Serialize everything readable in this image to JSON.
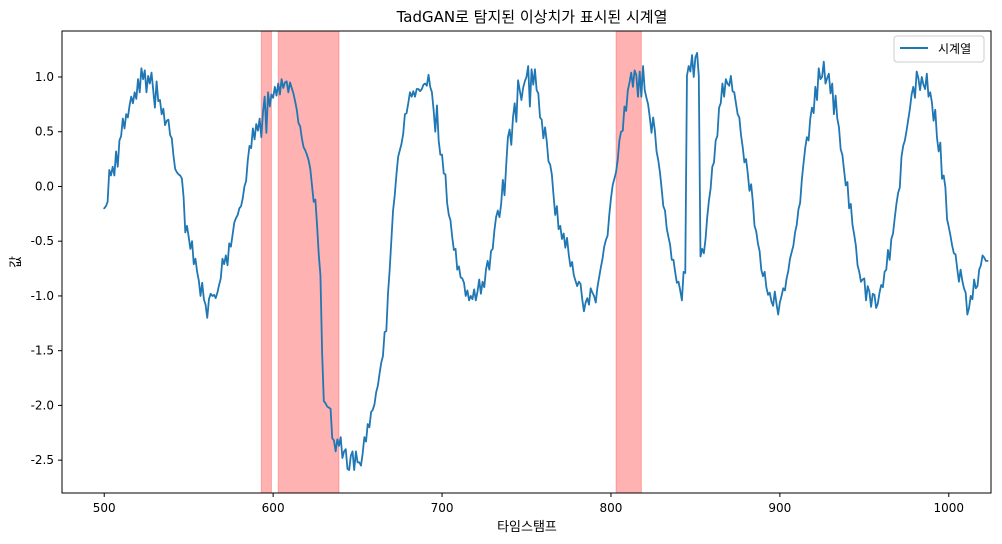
{
  "chart_data": {
    "type": "line",
    "title": "TadGAN로 탐지된 이상치가 표시된 시계열",
    "xlabel": "타임스탬프",
    "ylabel": "값",
    "xlim": [
      475,
      1025
    ],
    "ylim": [
      -2.8,
      1.42
    ],
    "xticks": [
      500,
      600,
      700,
      800,
      900,
      1000
    ],
    "yticks": [
      1.0,
      0.5,
      0.0,
      -0.5,
      -1.0,
      -1.5,
      -2.0,
      -2.5
    ],
    "legend": {
      "position": "top-right",
      "entries": [
        "시계열"
      ]
    },
    "series": [
      {
        "name": "시계열",
        "color": "#1f77b4",
        "x_start": 500,
        "x_step": 1,
        "values": [
          -0.2,
          -0.18,
          -0.14,
          0.15,
          0.1,
          0.18,
          0.1,
          0.32,
          0.18,
          0.42,
          0.46,
          0.62,
          0.53,
          0.66,
          0.63,
          0.74,
          0.82,
          0.76,
          0.86,
          0.8,
          0.98,
          0.86,
          1.08,
          0.98,
          1.06,
          0.86,
          1.01,
          0.94,
          1.04,
          0.88,
          0.72,
          0.96,
          0.78,
          0.79,
          0.66,
          0.71,
          0.56,
          0.6,
          0.61,
          0.47,
          0.44,
          0.28,
          0.16,
          0.13,
          0.11,
          0.1,
          0.07,
          -0.1,
          -0.42,
          -0.36,
          -0.46,
          -0.57,
          -0.5,
          -0.71,
          -0.66,
          -0.78,
          -0.86,
          -1.0,
          -0.88,
          -1.03,
          -1.08,
          -1.2,
          -1.03,
          -0.98,
          -1.0,
          -0.99,
          -1.02,
          -0.97,
          -0.9,
          -0.84,
          -0.66,
          -0.71,
          -0.63,
          -0.72,
          -0.52,
          -0.55,
          -0.44,
          -0.33,
          -0.29,
          -0.26,
          -0.2,
          -0.18,
          -0.11,
          0.0,
          0.05,
          0.24,
          0.37,
          0.35,
          0.53,
          0.43,
          0.57,
          0.51,
          0.62,
          0.45,
          0.68,
          0.82,
          0.49,
          0.86,
          0.73,
          0.84,
          0.81,
          0.91,
          0.83,
          0.94,
          0.84,
          0.98,
          0.9,
          0.95,
          0.96,
          0.86,
          0.95,
          0.9,
          0.85,
          0.78,
          0.7,
          0.58,
          0.55,
          0.44,
          0.36,
          0.33,
          0.29,
          0.24,
          0.16,
          0.01,
          -0.14,
          -0.12,
          -0.35,
          -0.62,
          -0.81,
          -1.52,
          -1.96,
          -1.98,
          -2.01,
          -2.02,
          -2.03,
          -2.3,
          -2.32,
          -2.42,
          -2.31,
          -2.37,
          -2.29,
          -2.48,
          -2.42,
          -2.4,
          -2.58,
          -2.59,
          -2.46,
          -2.42,
          -2.59,
          -2.42,
          -2.52,
          -2.52,
          -2.55,
          -2.44,
          -2.29,
          -2.33,
          -2.17,
          -2.2,
          -2.06,
          -2.04,
          -1.99,
          -1.88,
          -1.82,
          -1.71,
          -1.61,
          -1.55,
          -1.33,
          -1.32,
          -0.98,
          -0.76,
          -0.49,
          -0.22,
          -0.08,
          0.11,
          0.27,
          0.33,
          0.39,
          0.48,
          0.66,
          0.67,
          0.76,
          0.86,
          0.82,
          0.87,
          0.82,
          0.89,
          0.89,
          0.87,
          0.89,
          0.93,
          0.94,
          0.92,
          1.02,
          0.91,
          0.86,
          0.7,
          0.5,
          0.74,
          0.42,
          0.29,
          0.29,
          0.12,
          0.11,
          -0.15,
          -0.26,
          -0.31,
          -0.46,
          -0.58,
          -0.57,
          -0.76,
          -0.73,
          -0.83,
          -0.84,
          -0.88,
          -1.0,
          -0.95,
          -1.04,
          -1.0,
          -1.03,
          -0.94,
          -1.04,
          -0.96,
          -0.85,
          -0.98,
          -0.87,
          -0.92,
          -0.76,
          -0.68,
          -0.76,
          -0.59,
          -0.57,
          -0.4,
          -0.28,
          -0.22,
          -0.28,
          -0.16,
          0.06,
          -0.08,
          0.2,
          0.45,
          0.52,
          0.38,
          0.63,
          0.76,
          0.59,
          0.97,
          0.88,
          0.79,
          0.9,
          0.96,
          1.0,
          1.1,
          0.73,
          1.07,
          0.93,
          1.07,
          0.88,
          0.85,
          0.63,
          0.61,
          0.44,
          0.54,
          0.41,
          0.23,
          0.2,
          0.11,
          -0.08,
          -0.26,
          -0.18,
          -0.39,
          -0.36,
          -0.48,
          -0.43,
          -0.56,
          -0.47,
          -0.62,
          -0.73,
          -0.69,
          -0.81,
          -0.86,
          -0.91,
          -0.87,
          -0.89,
          -1.03,
          -1.14,
          -1.06,
          -1.02,
          -1.08,
          -0.93,
          -0.97,
          -1.0,
          -1.06,
          -0.92,
          -0.83,
          -0.74,
          -0.66,
          -0.55,
          -0.49,
          -0.45,
          -0.26,
          -0.11,
          0.01,
          0.07,
          0.13,
          0.24,
          0.42,
          0.5,
          0.51,
          0.73,
          0.69,
          0.88,
          0.95,
          1.04,
          0.91,
          1.06,
          1.02,
          0.82,
          1.05,
          0.82,
          1.1,
          0.88,
          0.81,
          0.75,
          0.63,
          0.49,
          0.63,
          0.51,
          0.32,
          0.24,
          0.13,
          -0.02,
          -0.18,
          -0.22,
          -0.38,
          -0.46,
          -0.53,
          -0.67,
          -0.67,
          -0.78,
          -0.88,
          -0.87,
          -0.95,
          -1.04,
          -0.78,
          -0.79,
          1.01,
          1.1,
          1.05,
          1.2,
          1.0,
          1.18,
          1.22,
          1.01,
          -0.64,
          -0.57,
          -0.61,
          -0.48,
          -0.28,
          -0.13,
          -0.02,
          0.18,
          0.22,
          0.42,
          0.46,
          0.72,
          0.76,
          0.94,
          0.82,
          0.98,
          0.94,
          0.92,
          1.01,
          0.87,
          0.86,
          0.76,
          0.66,
          0.63,
          0.47,
          0.36,
          0.22,
          0.25,
          0.12,
          -0.04,
          0.02,
          -0.14,
          -0.36,
          -0.41,
          -0.52,
          -0.59,
          -0.76,
          -0.82,
          -0.78,
          -0.92,
          -0.99,
          -0.97,
          -1.05,
          -1.09,
          -0.96,
          -1.07,
          -1.17,
          -1.06,
          -1.0,
          -0.93,
          -0.95,
          -0.84,
          -0.77,
          -0.66,
          -0.6,
          -0.54,
          -0.42,
          -0.35,
          -0.21,
          -0.15,
          0.06,
          0.21,
          0.35,
          0.45,
          0.42,
          0.62,
          0.72,
          0.67,
          0.91,
          0.79,
          1.08,
          0.98,
          1.0,
          1.14,
          0.94,
          0.99,
          1.03,
          0.85,
          0.94,
          0.66,
          0.83,
          0.62,
          0.54,
          0.34,
          0.29,
          0.15,
          0.01,
          0.04,
          -0.2,
          -0.16,
          -0.35,
          -0.44,
          -0.54,
          -0.72,
          -0.78,
          -0.87,
          -0.85,
          -0.84,
          -1.04,
          -0.91,
          -0.96,
          -1.1,
          -0.98,
          -0.99,
          -1.11,
          -1.07,
          -0.97,
          -0.9,
          -0.92,
          -0.78,
          -0.76,
          -0.58,
          -0.67,
          -0.48,
          -0.43,
          -0.29,
          -0.16,
          -0.06,
          -0.01,
          0.27,
          0.37,
          0.42,
          0.51,
          0.61,
          0.71,
          0.84,
          0.91,
          0.81,
          1.05,
          0.99,
          0.88,
          1.0,
          0.93,
          0.89,
          1.03,
          0.82,
          0.86,
          0.77,
          0.6,
          0.7,
          0.45,
          0.32,
          0.4,
          0.07,
          0.1,
          -0.01,
          -0.3,
          -0.37,
          -0.45,
          -0.54,
          -0.61,
          -0.62,
          -0.75,
          -0.87,
          -0.76,
          -0.86,
          -0.93,
          -0.97,
          -1.17,
          -1.11,
          -1.0,
          -1.03,
          -0.85,
          -0.93,
          -0.91,
          -0.76,
          -0.72,
          -0.63,
          -0.65,
          -0.68,
          -0.68
        ]
      }
    ],
    "anomalies": {
      "label": "TadGAN",
      "color": "#ff0000",
      "opacity": 0.3,
      "intervals": [
        [
          593,
          599
        ],
        [
          603,
          639
        ],
        [
          803,
          818
        ]
      ]
    }
  }
}
